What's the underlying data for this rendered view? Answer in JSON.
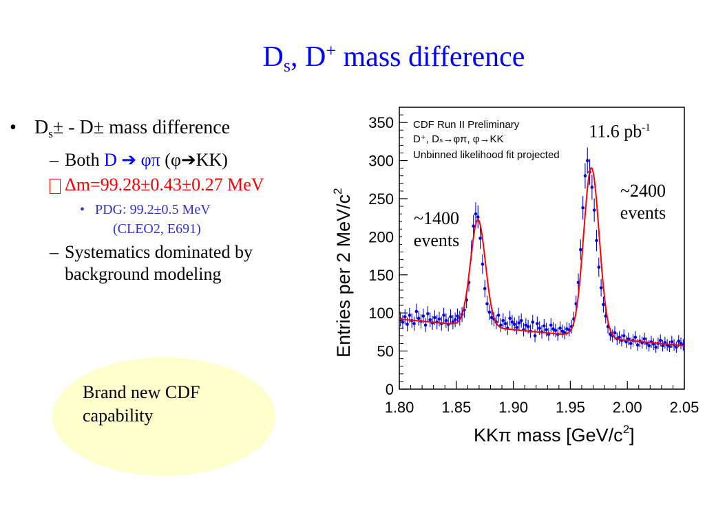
{
  "slide": {
    "title_main": "D",
    "title_sub": "s",
    "title_mid": ", D",
    "title_sup": "+",
    "title_end": " mass difference"
  },
  "bullets": {
    "b1_mark": "•",
    "b1_a": "D",
    "b1_sub": "s",
    "b1_b": "± - D± mass difference",
    "b2_mark": "–",
    "b2_a": "Both ",
    "b2_d": "D ",
    "b2_arrow": "➔",
    "b2_phipi": " φπ",
    "b2_rest": "    (φ➔KK)",
    "b3_mark": "",
    "b3_text": "Δm=99.28±0.43±0.27 MeV",
    "b4_mark": "•",
    "b4_text": "PDG: 99.2±0.5 MeV",
    "b4_text2": "(CLEO2, E691)",
    "b5_mark": "–",
    "b5_text": "Systematics dominated by background modeling"
  },
  "callout": {
    "text": "Brand new CDF capability"
  },
  "annotations": {
    "lumi": "11.6 pb",
    "lumi_sup": "-1",
    "left_peak_count": "~1400",
    "left_peak_label": "events",
    "right_peak_count": "~2400",
    "right_peak_label": "events"
  },
  "colors": {
    "title": "#0000ff",
    "points": "#0000dd",
    "fit": "#ff0000",
    "callout": "#ffffcc",
    "highlight": "#ff0000"
  },
  "chart_data": {
    "type": "scatter",
    "ylabel": "Entries per 2 MeV/c",
    "ylabel_sup": "2",
    "xlabel": "KKπ mass [GeV/c",
    "xlabel_sup": "2",
    "xlabel_end": "]",
    "legend_lines": [
      "CDF Run II Preliminary",
      "D⁺, Dₛ→φπ, φ→KK",
      "Unbinned likelihood fit projected"
    ],
    "xlim": [
      1.8,
      2.05
    ],
    "ylim": [
      0,
      370
    ],
    "x_ticks": [
      "1.80",
      "1.85",
      "1.90",
      "1.95",
      "2.00",
      "2.05"
    ],
    "y_ticks": [
      "0",
      "50",
      "100",
      "150",
      "200",
      "250",
      "300",
      "350"
    ],
    "x_tick_values": [
      1.8,
      1.85,
      1.9,
      1.95,
      2.0,
      2.05
    ],
    "y_tick_values": [
      0,
      50,
      100,
      150,
      200,
      250,
      300,
      350
    ],
    "series": [
      {
        "x": [
          1.801,
          1.803,
          1.805,
          1.807,
          1.809,
          1.811,
          1.813,
          1.815,
          1.817,
          1.819,
          1.821,
          1.823,
          1.825,
          1.827,
          1.829,
          1.831,
          1.833,
          1.835,
          1.837,
          1.839,
          1.841,
          1.843,
          1.845,
          1.847,
          1.849,
          1.851,
          1.853,
          1.855,
          1.857,
          1.859,
          1.861,
          1.863,
          1.865,
          1.867,
          1.869,
          1.871,
          1.873,
          1.875,
          1.877,
          1.879,
          1.881,
          1.883,
          1.885,
          1.887,
          1.889,
          1.891,
          1.893,
          1.895,
          1.897,
          1.899,
          1.901,
          1.903,
          1.905,
          1.907,
          1.909,
          1.911,
          1.913,
          1.915,
          1.917,
          1.919,
          1.921,
          1.923,
          1.925,
          1.927,
          1.929,
          1.931,
          1.933,
          1.935,
          1.937,
          1.939,
          1.941,
          1.943,
          1.945,
          1.947,
          1.949,
          1.951,
          1.953,
          1.955,
          1.957,
          1.959,
          1.961,
          1.963,
          1.965,
          1.967,
          1.969,
          1.971,
          1.973,
          1.975,
          1.977,
          1.979,
          1.981,
          1.983,
          1.985,
          1.987,
          1.989,
          1.991,
          1.993,
          1.995,
          1.997,
          1.999,
          2.001,
          2.003,
          2.005,
          2.007,
          2.009,
          2.011,
          2.013,
          2.015,
          2.017,
          2.019,
          2.021,
          2.023,
          2.025,
          2.027,
          2.029,
          2.031,
          2.033,
          2.035,
          2.037,
          2.039,
          2.041,
          2.043,
          2.045,
          2.047,
          2.049
        ],
        "y": [
          92,
          88,
          95,
          85,
          97,
          90,
          86,
          102,
          93,
          89,
          96,
          84,
          99,
          91,
          87,
          94,
          88,
          92,
          86,
          97,
          90,
          85,
          95,
          88,
          91,
          96,
          93,
          98,
          104,
          117,
          140,
          182,
          214,
          230,
          226,
          198,
          164,
          132,
          112,
          101,
          94,
          92,
          88,
          97,
          84,
          90,
          86,
          80,
          93,
          88,
          85,
          81,
          87,
          90,
          78,
          84,
          82,
          76,
          88,
          70,
          86,
          80,
          75,
          83,
          78,
          72,
          84,
          79,
          77,
          72,
          80,
          76,
          74,
          79,
          78,
          82,
          92,
          112,
          140,
          183,
          238,
          280,
          300,
          285,
          265,
          235,
          195,
          160,
          133,
          111,
          96,
          82,
          72,
          70,
          74,
          66,
          68,
          64,
          70,
          62,
          66,
          60,
          64,
          68,
          58,
          63,
          61,
          66,
          60,
          57,
          62,
          59,
          55,
          60,
          64,
          57,
          61,
          58,
          56,
          62,
          58,
          55,
          63,
          60,
          58
        ]
      }
    ]
  }
}
